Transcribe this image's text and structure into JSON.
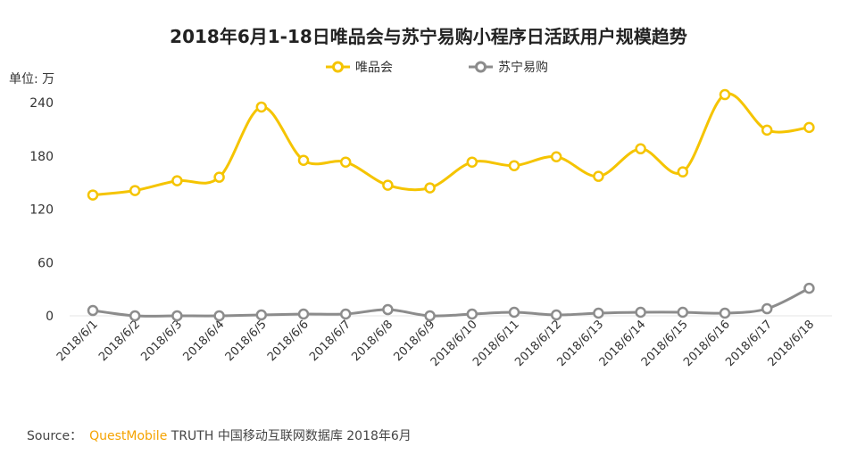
{
  "chart_data": {
    "type": "line",
    "title": "2018年6月1-18日唯品会与苏宁易购小程序日活跃用户规模趋势",
    "unit_label": "单位: 万",
    "categories": [
      "2018/6/1",
      "2018/6/2",
      "2018/6/3",
      "2018/6/4",
      "2018/6/5",
      "2018/6/6",
      "2018/6/7",
      "2018/6/8",
      "2018/6/9",
      "2018/6/10",
      "2018/6/11",
      "2018/6/12",
      "2018/6/13",
      "2018/6/14",
      "2018/6/15",
      "2018/6/16",
      "2018/6/17",
      "2018/6/18"
    ],
    "yticks": [
      0,
      60,
      120,
      180,
      240
    ],
    "ylim": [
      0,
      250
    ],
    "grid": false,
    "legend_position": "top",
    "series": [
      {
        "name": "唯品会",
        "color": "#f5c400",
        "values": [
          136,
          141,
          152,
          156,
          235,
          175,
          173,
          147,
          144,
          173,
          169,
          179,
          157,
          188,
          162,
          249,
          209,
          212
        ]
      },
      {
        "name": "苏宁易购",
        "color": "#8c8c8c",
        "values": [
          6,
          0,
          0,
          0,
          1,
          2,
          2,
          7,
          0,
          2,
          4,
          1,
          3,
          4,
          4,
          3,
          8,
          31
        ]
      }
    ]
  },
  "source": {
    "prefix": "Source：",
    "brand": "QuestMobile",
    "rest": " TRUTH 中国移动互联网数据库 2018年6月"
  }
}
